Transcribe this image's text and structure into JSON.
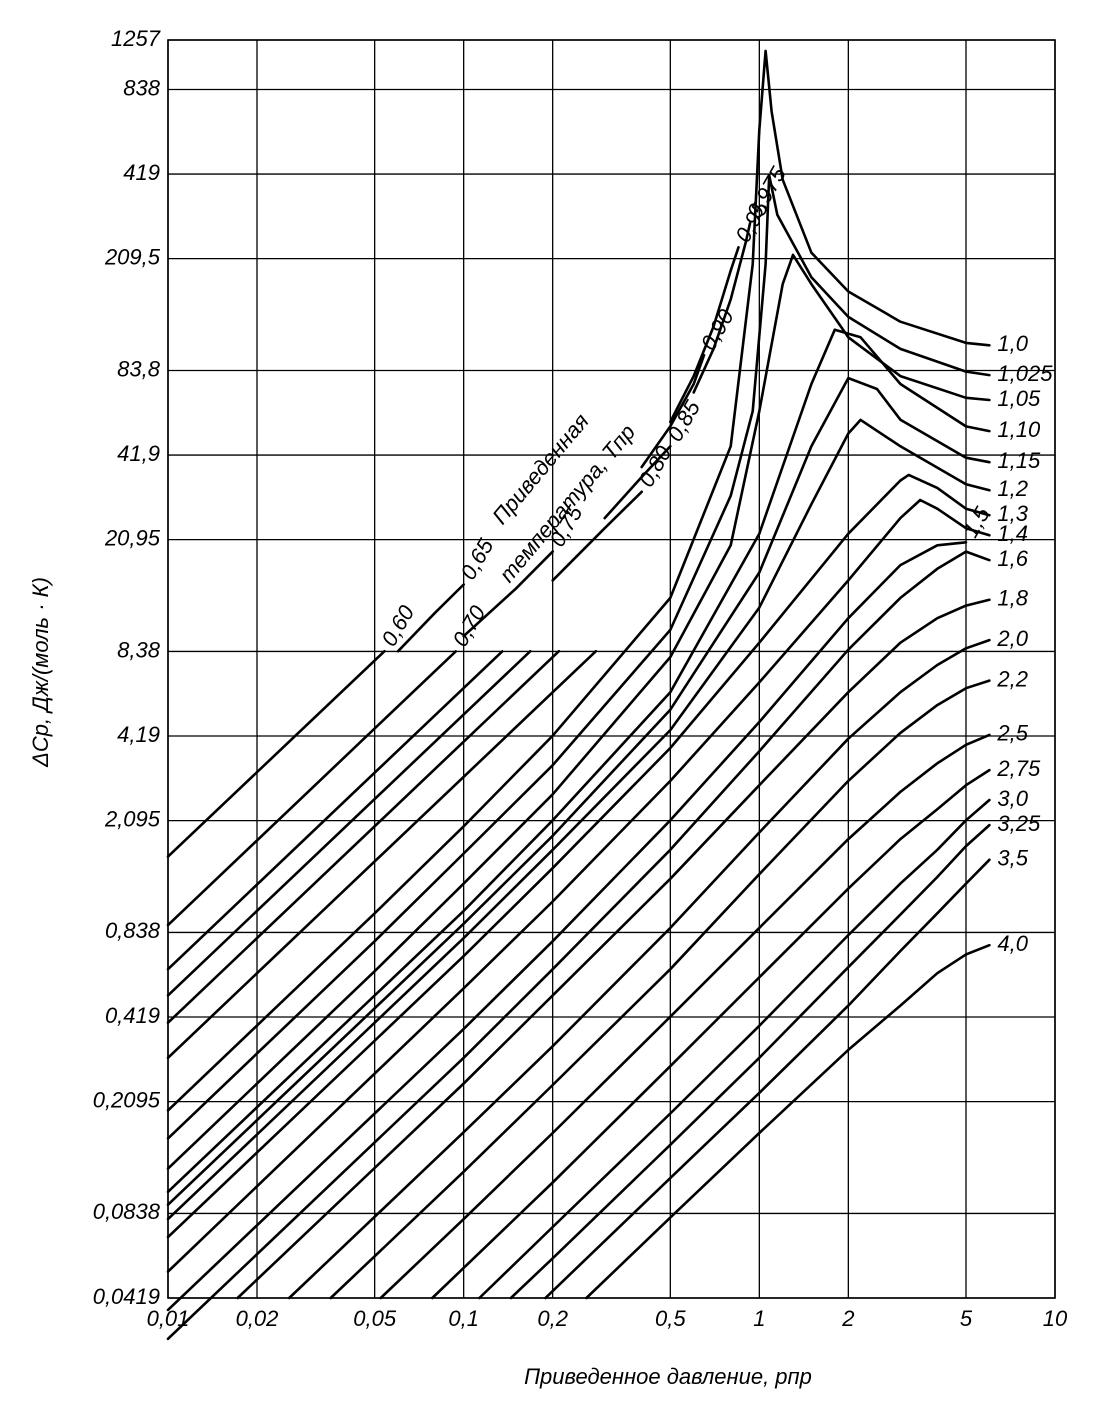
{
  "chart_data": {
    "type": "line",
    "xlabel": "Приведенное давление, pпр",
    "ylabel": "ΔCp, Дж/(моль · К)",
    "annotation": [
      "Приведенная",
      "температура, Tпр"
    ],
    "xscale": "log",
    "yscale": "log",
    "grid": true,
    "color": "#000000",
    "xlim": [
      0.01,
      10
    ],
    "ylim": [
      0.0419,
      1257
    ],
    "xticks": [
      {
        "value": 0.01,
        "label": "0,01"
      },
      {
        "value": 0.02,
        "label": "0,02"
      },
      {
        "value": 0.05,
        "label": "0,05"
      },
      {
        "value": 0.1,
        "label": "0,1"
      },
      {
        "value": 0.2,
        "label": "0,2"
      },
      {
        "value": 0.5,
        "label": "0,5"
      },
      1,
      2,
      5,
      10
    ],
    "yticks": [
      {
        "value": 0.0419,
        "label": "0,0419"
      },
      {
        "value": 0.0838,
        "label": "0,0838"
      },
      {
        "value": 0.2095,
        "label": "0,2095"
      },
      {
        "value": 0.419,
        "label": "0,419"
      },
      {
        "value": 0.838,
        "label": "0,838"
      },
      {
        "value": 2.095,
        "label": "2,095"
      },
      {
        "value": 4.19,
        "label": "4,19"
      },
      {
        "value": 8.38,
        "label": "8,38"
      },
      {
        "value": 20.95,
        "label": "20,95"
      },
      {
        "value": 41.9,
        "label": "41,9"
      },
      {
        "value": 83.8,
        "label": "83,8"
      },
      {
        "value": 209.5,
        "label": "209,5"
      },
      419,
      838,
      1257
    ],
    "series": [
      {
        "name": "0,60",
        "x": [
          0.01,
          0.054
        ],
        "values": [
          1.56,
          8.4
        ]
      },
      {
        "name": "0,65",
        "x": [
          0.06,
          0.08,
          0.1
        ],
        "values": [
          8.4,
          11.5,
          14.5
        ]
      },
      {
        "name": "0,70",
        "x": [
          0.01,
          0.094
        ],
        "values": [
          0.89,
          8.38
        ]
      },
      {
        "name": "0,75",
        "x": [
          0.1,
          0.15,
          0.2
        ],
        "values": [
          9.5,
          14,
          19
        ]
      },
      {
        "name": "0,80",
        "x": [
          0.01,
          0.135,
          null,
          0.2,
          0.3,
          0.4
        ],
        "values": [
          0.62,
          8.38,
          null,
          15,
          23,
          31
        ]
      },
      {
        "name": "0,85",
        "x": [
          0.01,
          0.168,
          null,
          0.3,
          0.4,
          0.5
        ],
        "values": [
          0.5,
          8.4,
          null,
          25,
          35,
          45
        ]
      },
      {
        "name": "0,90",
        "x": [
          0.01,
          0.21,
          null,
          0.4,
          0.5,
          0.6,
          0.65
        ],
        "values": [
          0.4,
          8.4,
          null,
          38,
          53,
          75,
          95
        ]
      },
      {
        "name": "0,95",
        "x": [
          0.01,
          0.28,
          null,
          0.5,
          0.6,
          0.7,
          0.8,
          0.85
        ],
        "values": [
          0.3,
          8.4,
          null,
          55,
          80,
          120,
          190,
          230
        ]
      },
      {
        "name": "0,975",
        "x": [
          0.6,
          0.7,
          0.8,
          0.9,
          0.93
        ],
        "values": [
          70,
          100,
          150,
          240,
          280
        ]
      },
      {
        "name": "1,0",
        "x": [
          0.01,
          0.05,
          0.1,
          0.2,
          0.5,
          0.8,
          0.95,
          1.0,
          1.05,
          1.1,
          1.2,
          1.5,
          2,
          3,
          5,
          6
        ],
        "values": [
          0.195,
          0.98,
          2.0,
          4.2,
          13,
          45,
          200,
          600,
          1150,
          700,
          400,
          220,
          160,
          125,
          105,
          103
        ]
      },
      {
        "name": "1,025",
        "x": [
          0.01,
          0.05,
          0.1,
          0.2,
          0.5,
          0.8,
          0.95,
          1.05,
          1.08,
          1.15,
          1.5,
          2,
          3,
          5,
          6
        ],
        "values": [
          0.155,
          0.78,
          1.6,
          3.3,
          10,
          30,
          60,
          200,
          415,
          300,
          180,
          130,
          100,
          83,
          80.7
        ]
      },
      {
        "name": "1,05",
        "x": [
          0.01,
          0.05,
          0.1,
          0.2,
          0.5,
          0.8,
          1,
          1.2,
          1.3,
          1.5,
          2,
          3,
          5,
          6
        ],
        "values": [
          0.121,
          0.61,
          1.25,
          2.6,
          8,
          20,
          60,
          170,
          216,
          170,
          110,
          80,
          67,
          65.8
        ]
      },
      {
        "name": "1,10",
        "x": [
          0.01,
          0.1,
          0.2,
          0.5,
          1,
          1.5,
          1.8,
          2.2,
          3,
          5,
          6
        ],
        "values": [
          0.1,
          1.0,
          2.1,
          6,
          22,
          75,
          117,
          110,
          75,
          53,
          51
        ]
      },
      {
        "name": "1,15",
        "x": [
          0.01,
          0.1,
          0.2,
          0.5,
          1,
          1.5,
          2,
          2.5,
          3,
          5,
          6
        ],
        "values": [
          0.09,
          0.9,
          1.85,
          5.2,
          16,
          45,
          78.7,
          72,
          56,
          41,
          39.5
        ]
      },
      {
        "name": "1,2",
        "x": [
          0.01,
          0.1,
          0.2,
          0.5,
          1,
          1.5,
          2,
          2.2,
          3,
          5,
          6
        ],
        "values": [
          0.08,
          0.8,
          1.65,
          4.4,
          12,
          28,
          50,
          55.9,
          45,
          33,
          31.4
        ]
      },
      {
        "name": "1,3",
        "x": [
          0.01,
          0.1,
          0.2,
          0.5,
          1,
          2,
          3,
          3.2,
          4,
          5,
          6
        ],
        "values": [
          0.069,
          0.69,
          1.42,
          3.8,
          9,
          22,
          34,
          35.6,
          32,
          27,
          25.6
        ]
      },
      {
        "name": "1,4",
        "x": [
          0.01,
          0.1,
          0.2,
          0.5,
          1,
          2,
          3,
          3.5,
          4,
          5,
          6
        ],
        "values": [
          0.052,
          0.53,
          1.08,
          2.9,
          6.5,
          15,
          25,
          29,
          27,
          23,
          21.7
        ]
      },
      {
        "name": "1,5",
        "x": [
          0.01,
          0.1,
          0.2,
          0.5,
          1,
          2,
          3,
          4,
          5
        ],
        "values": [
          0.038,
          0.38,
          0.78,
          2.1,
          4.7,
          11,
          17,
          20,
          20.5
        ]
      },
      {
        "name": "1,6",
        "x": [
          0.01,
          0.1,
          0.2,
          0.5,
          1,
          2,
          3,
          4,
          5,
          6
        ],
        "values": [
          0.03,
          0.3,
          0.62,
          1.65,
          3.7,
          8.5,
          13,
          16.5,
          19,
          17.7
        ]
      },
      {
        "name": "1,8",
        "x": [
          0.0172,
          0.1,
          0.2,
          0.5,
          1,
          2,
          3,
          4,
          5,
          6
        ],
        "values": [
          0.0419,
          0.243,
          0.5,
          1.3,
          2.8,
          6,
          9,
          11,
          12.2,
          12.8
        ]
      },
      {
        "name": "2,0",
        "x": [
          0.0257,
          0.1,
          0.2,
          0.5,
          1,
          2,
          3,
          4,
          5,
          6
        ],
        "values": [
          0.0419,
          0.163,
          0.33,
          0.87,
          1.9,
          4.1,
          6,
          7.5,
          8.6,
          9.2
        ]
      },
      {
        "name": "2,2",
        "x": [
          0.0355,
          0.1,
          0.2,
          0.5,
          1,
          2,
          3,
          4,
          5,
          6
        ],
        "values": [
          0.0419,
          0.118,
          0.24,
          0.62,
          1.35,
          2.9,
          4.3,
          5.4,
          6.2,
          6.6
        ]
      },
      {
        "name": "2,5",
        "x": [
          0.0524,
          0.1,
          0.2,
          0.5,
          1,
          2,
          3,
          4,
          5,
          6
        ],
        "values": [
          0.0419,
          0.08,
          0.162,
          0.42,
          0.87,
          1.8,
          2.65,
          3.35,
          3.9,
          4.23
        ]
      },
      {
        "name": "2,75",
        "x": [
          0.0783,
          0.2,
          0.5,
          1,
          2,
          3,
          4,
          5,
          6
        ],
        "values": [
          0.0419,
          0.108,
          0.28,
          0.58,
          1.2,
          1.8,
          2.3,
          2.8,
          3.17
        ]
      },
      {
        "name": "3,0",
        "x": [
          0.113,
          0.2,
          0.5,
          1,
          2,
          3,
          4,
          5,
          6
        ],
        "values": [
          0.0419,
          0.075,
          0.19,
          0.39,
          0.82,
          1.25,
          1.65,
          2.1,
          2.48
        ]
      },
      {
        "name": "3,25",
        "x": [
          0.1445,
          0.2,
          0.5,
          1,
          2,
          3,
          4,
          5,
          6
        ],
        "values": [
          0.0419,
          0.058,
          0.147,
          0.3,
          0.63,
          0.97,
          1.32,
          1.7,
          2.02
        ]
      },
      {
        "name": "3,5",
        "x": [
          0.189,
          0.5,
          1,
          2,
          3,
          4,
          5,
          6
        ],
        "values": [
          0.0419,
          0.112,
          0.225,
          0.46,
          0.72,
          0.98,
          1.25,
          1.52
        ]
      },
      {
        "name": "4,0",
        "x": [
          0.26,
          0.5,
          1,
          2,
          3,
          4,
          5,
          6
        ],
        "values": [
          0.0419,
          0.081,
          0.162,
          0.32,
          0.46,
          0.6,
          0.7,
          0.755
        ]
      }
    ]
  }
}
